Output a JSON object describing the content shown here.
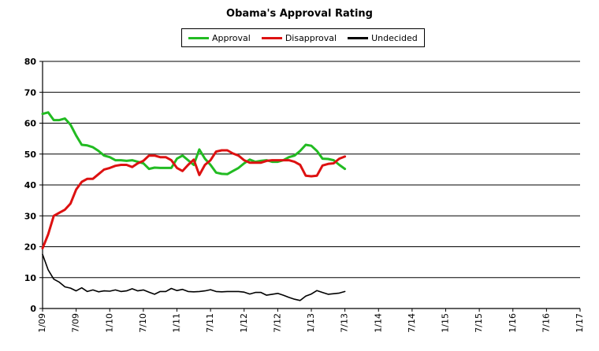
{
  "chart_data": {
    "type": "line",
    "title": "Obama's Approval Rating",
    "xlabel": "",
    "ylabel": "",
    "ylim": [
      0,
      80
    ],
    "yticks": [
      "0",
      "10",
      "20",
      "30",
      "40",
      "50",
      "60",
      "70",
      "80"
    ],
    "xlim": [
      0,
      96
    ],
    "xticks": [
      "1/09",
      "7/09",
      "1/10",
      "7/10",
      "1/11",
      "7/11",
      "1/12",
      "7/12",
      "1/13",
      "7/13",
      "1/14",
      "7/14",
      "1/15",
      "7/15",
      "1/16",
      "7/16",
      "1/17"
    ],
    "x_unit": "months since 1/09",
    "grid": "horizontal",
    "legend": "top-center",
    "series": [
      {
        "name": "Approval",
        "color": "#22bb22",
        "points": [
          [
            0,
            63
          ],
          [
            1,
            63.5
          ],
          [
            2,
            61
          ],
          [
            3,
            61
          ],
          [
            4,
            61.5
          ],
          [
            5,
            59.5
          ],
          [
            6,
            56
          ],
          [
            7,
            53
          ],
          [
            8,
            52.8
          ],
          [
            9,
            52.2
          ],
          [
            10,
            51
          ],
          [
            11,
            49.5
          ],
          [
            12,
            49
          ],
          [
            13,
            48
          ],
          [
            14,
            48
          ],
          [
            15,
            47.8
          ],
          [
            16,
            48
          ],
          [
            17,
            47.5
          ],
          [
            18,
            47
          ],
          [
            19,
            45.2
          ],
          [
            20,
            45.6
          ],
          [
            21,
            45.5
          ],
          [
            22,
            45.5
          ],
          [
            23,
            45.5
          ],
          [
            24,
            48.5
          ],
          [
            25,
            49.5
          ],
          [
            26,
            48
          ],
          [
            27,
            46.5
          ],
          [
            28,
            51.5
          ],
          [
            29,
            48.5
          ],
          [
            30,
            46.5
          ],
          [
            31,
            44
          ],
          [
            32,
            43.6
          ],
          [
            33,
            43.5
          ],
          [
            34,
            44.5
          ],
          [
            35,
            45.5
          ],
          [
            36,
            47
          ],
          [
            37,
            48.2
          ],
          [
            38,
            47.5
          ],
          [
            39,
            47.8
          ],
          [
            40,
            48
          ],
          [
            41,
            47.5
          ],
          [
            42,
            47.5
          ],
          [
            43,
            48
          ],
          [
            44,
            49
          ],
          [
            45,
            49.5
          ],
          [
            46,
            51
          ],
          [
            47,
            53
          ],
          [
            48,
            52.7
          ],
          [
            49,
            51
          ],
          [
            50,
            48.5
          ],
          [
            51,
            48.4
          ],
          [
            52,
            48
          ],
          [
            53,
            46.5
          ],
          [
            54,
            45.2
          ]
        ]
      },
      {
        "name": "Disapproval",
        "color": "#dd1111",
        "points": [
          [
            0,
            19.5
          ],
          [
            1,
            24
          ],
          [
            2,
            30
          ],
          [
            3,
            31
          ],
          [
            4,
            32
          ],
          [
            5,
            34
          ],
          [
            6,
            38.5
          ],
          [
            7,
            41
          ],
          [
            8,
            42
          ],
          [
            9,
            42
          ],
          [
            10,
            43.5
          ],
          [
            11,
            45
          ],
          [
            12,
            45.5
          ],
          [
            13,
            46.2
          ],
          [
            14,
            46.5
          ],
          [
            15,
            46.5
          ],
          [
            16,
            45.8
          ],
          [
            17,
            47
          ],
          [
            18,
            47.8
          ],
          [
            19,
            49.5
          ],
          [
            20,
            49.5
          ],
          [
            21,
            49
          ],
          [
            22,
            49
          ],
          [
            23,
            48
          ],
          [
            24,
            45.5
          ],
          [
            25,
            44.5
          ],
          [
            26,
            46.5
          ],
          [
            27,
            48.2
          ],
          [
            28,
            43.2
          ],
          [
            29,
            46.5
          ],
          [
            30,
            48
          ],
          [
            31,
            50.8
          ],
          [
            32,
            51.2
          ],
          [
            33,
            51.2
          ],
          [
            34,
            50.2
          ],
          [
            35,
            49.5
          ],
          [
            36,
            48
          ],
          [
            37,
            47.2
          ],
          [
            38,
            47.2
          ],
          [
            39,
            47.2
          ],
          [
            40,
            47.8
          ],
          [
            41,
            48
          ],
          [
            42,
            48
          ],
          [
            43,
            48
          ],
          [
            44,
            48
          ],
          [
            45,
            47.5
          ],
          [
            46,
            46.5
          ],
          [
            47,
            43
          ],
          [
            48,
            42.8
          ],
          [
            49,
            43
          ],
          [
            50,
            46.3
          ],
          [
            51,
            46.8
          ],
          [
            52,
            47
          ],
          [
            53,
            48.5
          ],
          [
            54,
            49.2
          ]
        ]
      },
      {
        "name": "Undecided",
        "color": "#000000",
        "points": [
          [
            0,
            17.5
          ],
          [
            1,
            12.5
          ],
          [
            2,
            9.5
          ],
          [
            3,
            8.5
          ],
          [
            4,
            7
          ],
          [
            5,
            6.6
          ],
          [
            6,
            5.7
          ],
          [
            7,
            6.7
          ],
          [
            8,
            5.5
          ],
          [
            9,
            6
          ],
          [
            10,
            5.4
          ],
          [
            11,
            5.7
          ],
          [
            12,
            5.6
          ],
          [
            13,
            6
          ],
          [
            14,
            5.5
          ],
          [
            15,
            5.7
          ],
          [
            16,
            6.4
          ],
          [
            17,
            5.7
          ],
          [
            18,
            6
          ],
          [
            19,
            5.3
          ],
          [
            20,
            4.6
          ],
          [
            21,
            5.5
          ],
          [
            22,
            5.5
          ],
          [
            23,
            6.5
          ],
          [
            24,
            5.8
          ],
          [
            25,
            6.2
          ],
          [
            26,
            5.5
          ],
          [
            27,
            5.4
          ],
          [
            28,
            5.5
          ],
          [
            29,
            5.7
          ],
          [
            30,
            6.1
          ],
          [
            31,
            5.5
          ],
          [
            32,
            5.4
          ],
          [
            33,
            5.5
          ],
          [
            34,
            5.5
          ],
          [
            35,
            5.5
          ],
          [
            36,
            5.3
          ],
          [
            37,
            4.7
          ],
          [
            38,
            5.2
          ],
          [
            39,
            5.2
          ],
          [
            40,
            4.3
          ],
          [
            41,
            4.6
          ],
          [
            42,
            4.9
          ],
          [
            43,
            4.3
          ],
          [
            44,
            3.6
          ],
          [
            45,
            3
          ],
          [
            46,
            2.6
          ],
          [
            47,
            4
          ],
          [
            48,
            4.7
          ],
          [
            49,
            5.8
          ],
          [
            50,
            5.2
          ],
          [
            51,
            4.6
          ],
          [
            52,
            4.8
          ],
          [
            53,
            5
          ],
          [
            54,
            5.5
          ]
        ]
      }
    ]
  }
}
